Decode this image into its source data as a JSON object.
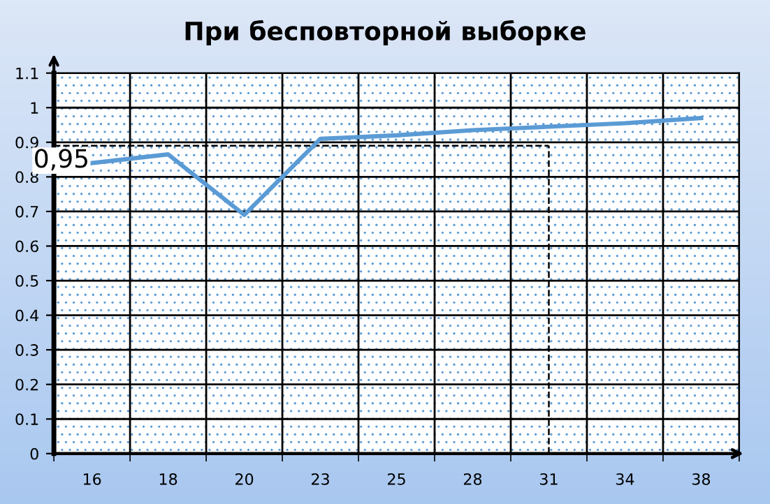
{
  "chart_data": {
    "type": "line",
    "title": "При бесповторной выборке",
    "categories": [
      "16",
      "18",
      "20",
      "23",
      "25",
      "28",
      "31",
      "34",
      "38"
    ],
    "series": [
      {
        "color": "#5b9bd5",
        "values": [
          0.84,
          0.865,
          0.69,
          0.91,
          0.92,
          0.935,
          0.945,
          0.955,
          0.97
        ]
      }
    ],
    "ylim": [
      0,
      1.1
    ],
    "yticks": [
      0,
      0.1,
      0.2,
      0.3,
      0.4,
      0.5,
      0.6,
      0.7,
      0.8,
      0.9,
      1,
      1.1
    ],
    "annotations": [
      "0,95"
    ],
    "ref_lines": [
      {
        "axis": "y",
        "value": 0.89,
        "line_style": "dashed",
        "color": "#000000"
      },
      {
        "axis": "x",
        "value": "31",
        "line_style": "dashed",
        "color": "#000000"
      }
    ],
    "grid": true,
    "marker": "none",
    "line_style": "solid",
    "legend": false
  }
}
